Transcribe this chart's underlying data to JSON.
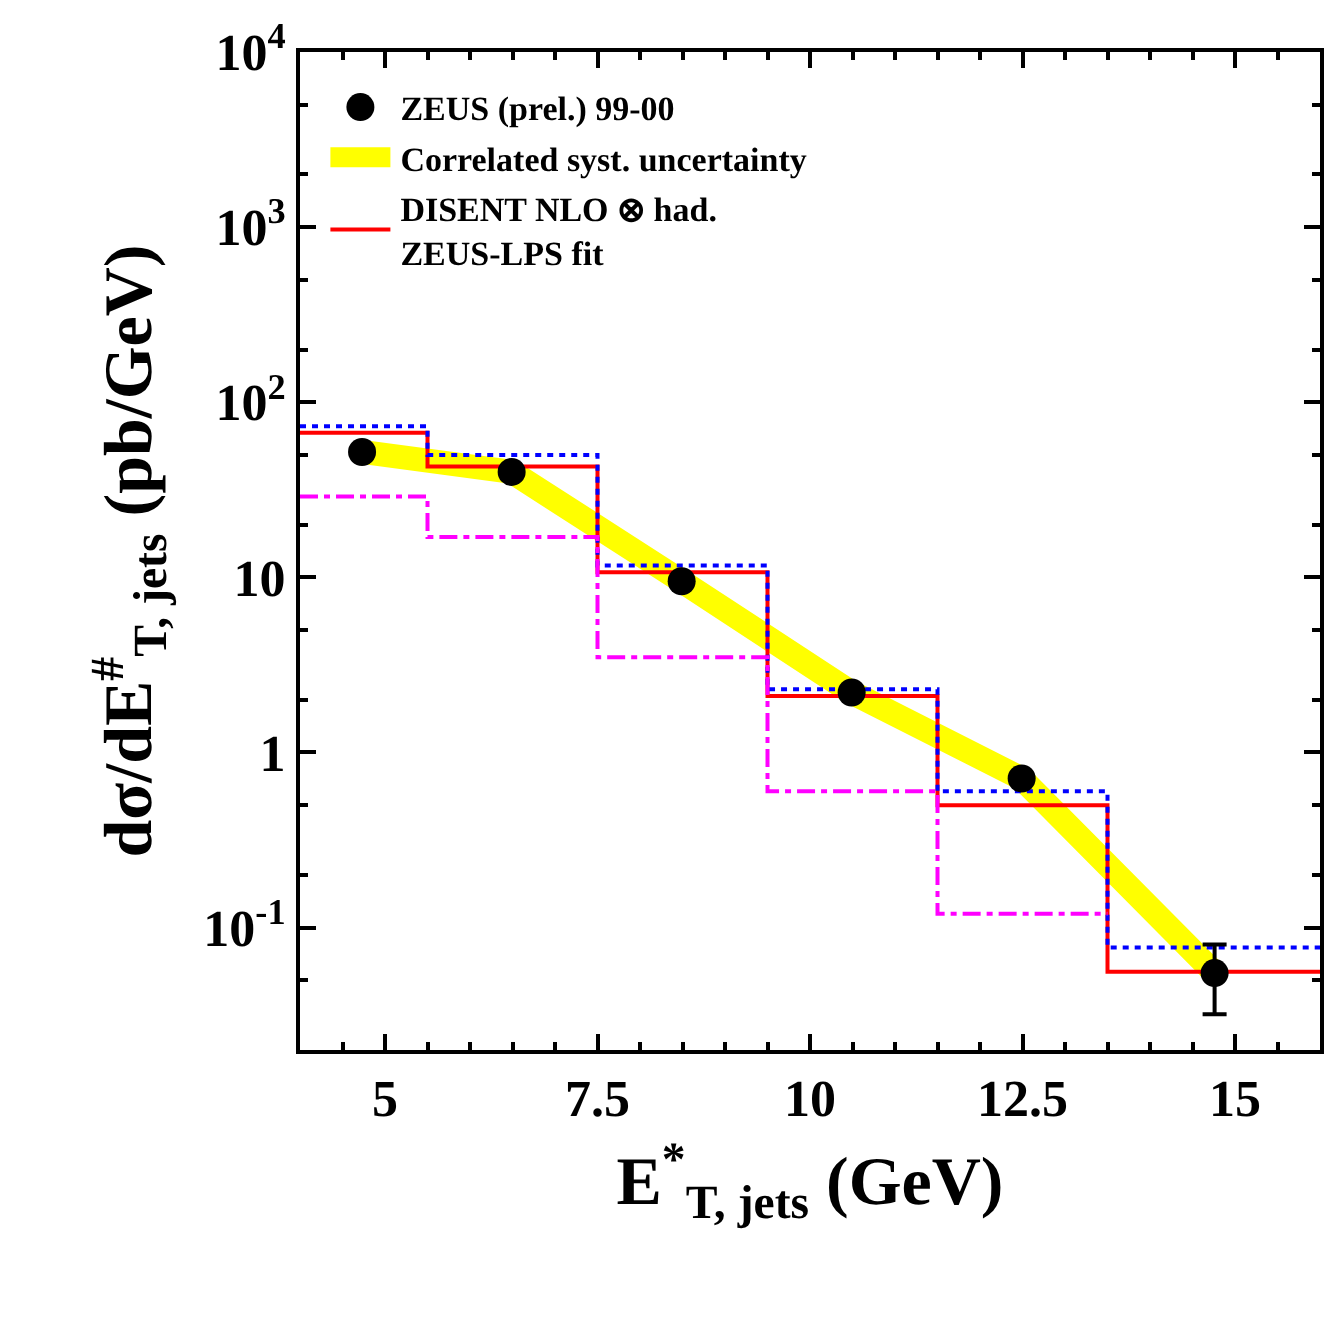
{
  "chart_data": {
    "type": "scatter",
    "xlabel": "E$^{*}$$_{T, jets}$ (GeV)",
    "ylabel": "dσ/dE$^{#}$$_{T, jets}$ (pb/GeV)",
    "log": "y",
    "legend": "top left",
    "xlim": [
      4,
      16
    ],
    "xticks": [
      5,
      7.5,
      10,
      12.5,
      15
    ],
    "ylim": [
      0.02,
      10000
    ],
    "yticks": [
      {
        "value": 0.1,
        "label": "10$^{-1}$"
      },
      1,
      10,
      {
        "value": 100,
        "label": "10$^{2}$"
      },
      {
        "value": 1000,
        "label": "10$^{3}$"
      },
      {
        "value": 10000,
        "label": "10$^{4}$"
      }
    ],
    "series": [
      {
        "type": "line",
        "name": "Correlated syst. uncertainty",
        "color": "#ffff00",
        "x": [
          4.73,
          6.49,
          8.49,
          10.49,
          12.49,
          14.76
        ],
        "values": [
          52,
          40,
          9.5,
          2.2,
          0.71,
          0.055
        ]
      },
      {
        "type": "histogram",
        "name": "DISENT NLO ⊗ had.\nZEUS-LPS fit",
        "color": "#ff0000",
        "line_style": "solid",
        "bins": [
          4,
          5.5,
          7.5,
          9.5,
          11.5,
          13.5,
          16
        ],
        "values": [
          67,
          43,
          10.7,
          2.1,
          0.5,
          0.056
        ]
      },
      {
        "type": "histogram",
        "color": "#0000ff",
        "line_style": "dotted",
        "bins": [
          4,
          5.5,
          7.5,
          9.5,
          11.5,
          13.5,
          16
        ],
        "values": [
          73,
          50,
          11.7,
          2.3,
          0.6,
          0.077
        ]
      },
      {
        "type": "histogram",
        "color": "#ff00ff",
        "line_style": "dashdot",
        "bins": [
          4,
          5.5,
          7.5,
          9.5,
          11.5,
          13.5
        ],
        "values": [
          29,
          17,
          3.5,
          0.6,
          0.12
        ]
      },
      {
        "name": "ZEUS (prel.) 99-00",
        "marker": "circle",
        "color": "#000000",
        "x": [
          4.73,
          6.49,
          8.49,
          10.49,
          12.49,
          14.76
        ],
        "values": [
          52,
          40,
          9.5,
          2.2,
          0.71,
          0.055
        ],
        "errors": [
          null,
          null,
          null,
          null,
          null,
          [
            0.032,
            0.08
          ]
        ]
      }
    ]
  }
}
